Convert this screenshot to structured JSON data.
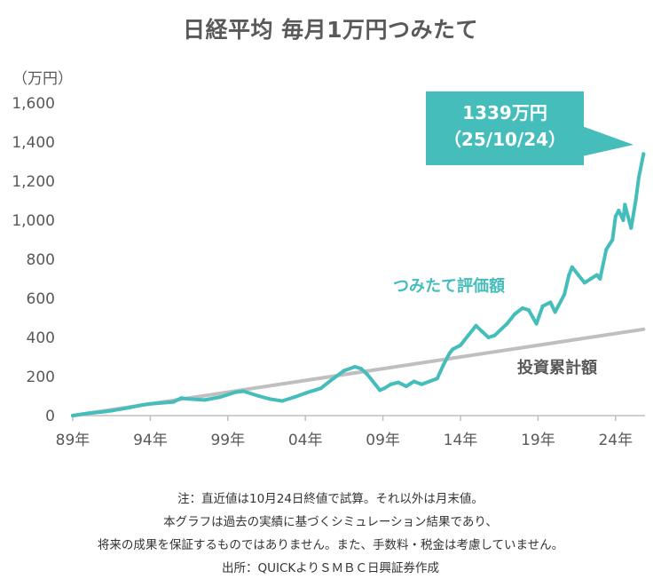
{
  "title": "日経平均 毎月1万円つみたて",
  "unit_label": "（万円）",
  "callout": {
    "line1": "1339万円",
    "line2": "（25/10/24）"
  },
  "series_labels": {
    "evaluation": "つみたて評価額",
    "investment": "投資累計額"
  },
  "notes": [
    "注：直近値は10月24日終値で試算。それ以外は月末値。",
    "本グラフは過去の実績に基づくシミュレーション結果であり、",
    "将来の成果を保証するものではありません。また、手数料・税金は考慮していません。",
    "出所：QUICKよりＳＭＢＣ日興証券作成"
  ],
  "colors": {
    "evaluation": "#44bdbb",
    "investment": "#bfbfbf",
    "callout_bg": "#44bdbb",
    "text": "#595959"
  },
  "chart_data": {
    "type": "line",
    "title": "日経平均 毎月1万円つみたて",
    "ylabel": "（万円）",
    "xlabel": "",
    "ylim": [
      0,
      1600
    ],
    "yticks": [
      0,
      200,
      400,
      600,
      800,
      1000,
      1200,
      1400,
      1600
    ],
    "ytick_labels": [
      "0",
      "200",
      "400",
      "600",
      "800",
      "1,000",
      "1,200",
      "1,400",
      "1,600"
    ],
    "xlim": [
      1989.0,
      2025.9
    ],
    "xticks": [
      1989,
      1994,
      1999,
      2004,
      2009,
      2014,
      2019,
      2024
    ],
    "xtick_labels": [
      "89年",
      "94年",
      "99年",
      "04年",
      "09年",
      "14年",
      "19年",
      "24年"
    ],
    "grid": false,
    "series": [
      {
        "name": "つみたて評価額",
        "x": [
          1989.0,
          1990.0,
          1990.8,
          1991.5,
          1992.6,
          1993.5,
          1994.0,
          1995.5,
          1996.0,
          1996.5,
          1997.5,
          1998.5,
          1999.5,
          2000.0,
          2001.0,
          2001.7,
          2002.5,
          2003.3,
          2004.0,
          2005.0,
          2005.8,
          2006.5,
          2007.2,
          2007.6,
          2008.0,
          2008.5,
          2008.8,
          2009.1,
          2009.5,
          2010.0,
          2010.5,
          2011.0,
          2011.5,
          2012.0,
          2012.5,
          2012.9,
          2013.3,
          2013.5,
          2014.0,
          2014.5,
          2015.0,
          2015.4,
          2015.8,
          2016.2,
          2016.6,
          2017.0,
          2017.5,
          2018.0,
          2018.4,
          2018.9,
          2019.3,
          2019.8,
          2020.1,
          2020.3,
          2020.7,
          2021.0,
          2021.2,
          2021.6,
          2022.0,
          2022.4,
          2022.8,
          2023.0,
          2023.4,
          2023.8,
          2024.0,
          2024.2,
          2024.5,
          2024.6,
          2024.8,
          2025.0,
          2025.3,
          2025.5,
          2025.8
        ],
        "values": [
          0,
          12,
          18,
          25,
          40,
          55,
          60,
          70,
          90,
          85,
          80,
          95,
          120,
          125,
          100,
          85,
          75,
          95,
          115,
          140,
          190,
          230,
          250,
          240,
          210,
          160,
          130,
          140,
          160,
          170,
          150,
          175,
          160,
          175,
          190,
          260,
          320,
          340,
          360,
          410,
          460,
          430,
          400,
          410,
          440,
          470,
          520,
          550,
          540,
          470,
          560,
          580,
          530,
          560,
          620,
          720,
          760,
          720,
          680,
          700,
          720,
          700,
          850,
          900,
          1020,
          1050,
          1000,
          1080,
          1020,
          960,
          1100,
          1220,
          1339
        ]
      },
      {
        "name": "投資累計額",
        "x": [
          1989.0,
          2025.8
        ],
        "values": [
          0,
          442
        ]
      }
    ],
    "annotations": [
      {
        "text": "1339万円（25/10/24）",
        "x": 2025.8,
        "y": 1339
      }
    ]
  }
}
